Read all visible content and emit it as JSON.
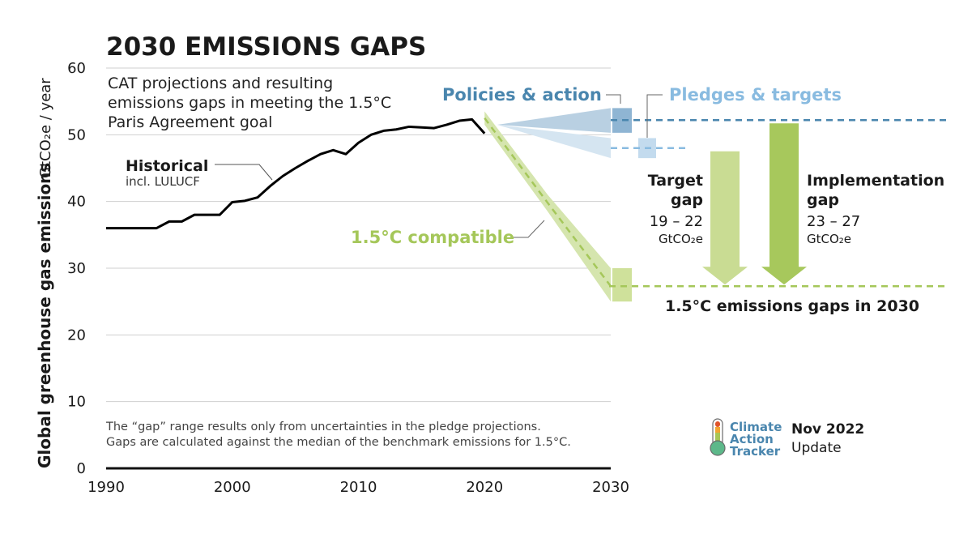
{
  "header": {
    "title": "2030 EMISSIONS GAPS",
    "subtitle_lines": [
      "CAT projections and resulting",
      "emissions gaps in meeting the 1.5°C",
      "Paris Agreement goal"
    ]
  },
  "chart_data": {
    "type": "line",
    "xlim": [
      1990,
      2030
    ],
    "ylim": [
      0,
      60
    ],
    "x_ticks": [
      "1990",
      "2000",
      "2010",
      "2020",
      "2030"
    ],
    "y_ticks": [
      "0",
      "10",
      "20",
      "30",
      "40",
      "50",
      "60"
    ],
    "ylabel": "Global greenhouse gas emissions",
    "yunit": "GtCO₂e / year",
    "grid": true,
    "historical": {
      "label": "Historical",
      "sublabel": "incl. LULUCF",
      "x": [
        1990,
        1991,
        1992,
        1993,
        1994,
        1995,
        1996,
        1997,
        1998,
        1999,
        2000,
        2001,
        2002,
        2003,
        2004,
        2005,
        2006,
        2007,
        2008,
        2009,
        2010,
        2011,
        2012,
        2013,
        2014,
        2015,
        2016,
        2017,
        2018,
        2019,
        2020
      ],
      "y": [
        36,
        36,
        36,
        36,
        36,
        37,
        37,
        38,
        38,
        38,
        39.9,
        40.1,
        40.6,
        42.3,
        43.8,
        45.0,
        46.1,
        47.1,
        47.7,
        47.1,
        48.8,
        50.0,
        50.6,
        50.8,
        51.2,
        51.1,
        51.0,
        51.5,
        52.1,
        52.3,
        50.2
      ]
    },
    "policies": {
      "label": "Policies & action",
      "x": [
        2021,
        2030
      ],
      "upper": [
        51.5,
        54
      ],
      "lower": [
        51.5,
        50.3
      ],
      "median": [
        51.5,
        52.2
      ]
    },
    "pledges": {
      "label": "Pledges & targets",
      "x": [
        2021,
        2030
      ],
      "upper": [
        51.5,
        49.5
      ],
      "lower": [
        51.5,
        46.5
      ],
      "median": [
        51.5,
        48
      ]
    },
    "compatible": {
      "label": "1.5°C compatible",
      "x": [
        2020,
        2025,
        2030
      ],
      "upper": [
        53.5,
        41,
        30
      ],
      "lower": [
        51.5,
        38.5,
        25
      ],
      "median": [
        52.5,
        39.8,
        27.3
      ]
    },
    "gaps": {
      "target": {
        "label_lines": [
          "Target",
          "gap"
        ],
        "range": "19 – 22",
        "unit": "GtCO₂e"
      },
      "implementation": {
        "label_lines": [
          "Implementation",
          "gap"
        ],
        "range": "23 – 27",
        "unit": "GtCO₂e"
      },
      "caption": "1.5°C emissions gaps in 2030"
    },
    "colors": {
      "historical": "#000000",
      "policies": "#4a86ae",
      "policies_fill": "#b9d0e2",
      "pledges": "#89bbe0",
      "pledges_fill": "#d5e5f1",
      "compatible": "#a5c75a",
      "compatible_fill": "#d5e5ae",
      "target_arrow": "#c9dc93",
      "implementation_arrow": "#a7c85c",
      "grid": "#cfcfcf"
    }
  },
  "footnote_lines": [
    "The “gap” range results only from uncertainties in the pledge projections.",
    "Gaps are calculated against the median of the benchmark emissions for 1.5°C."
  ],
  "logo": {
    "lines": [
      "Climate",
      "Action",
      "Tracker"
    ]
  },
  "update": {
    "date": "Nov 2022",
    "label": "Update"
  }
}
